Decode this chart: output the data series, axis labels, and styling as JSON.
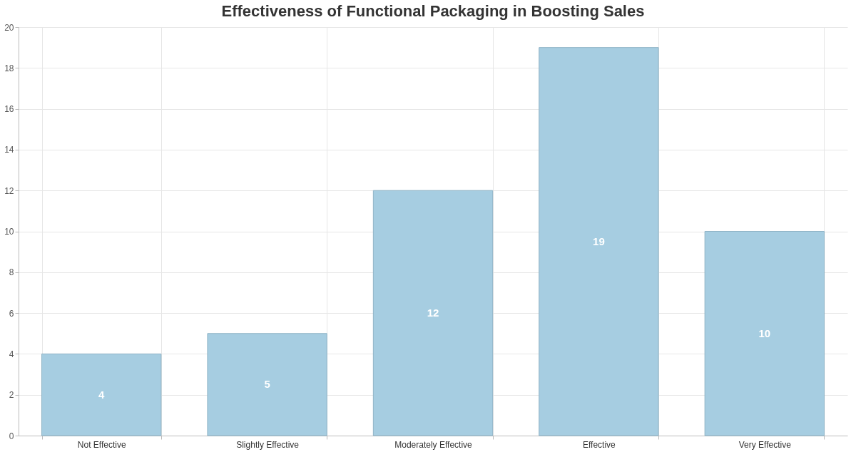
{
  "chart_data": {
    "type": "bar",
    "title": "Effectiveness of Functional Packaging in Boosting Sales",
    "categories": [
      "Not Effective",
      "Slightly Effective",
      "Moderately Effective",
      "Effective",
      "Very Effective"
    ],
    "values": [
      4,
      5,
      12,
      19,
      10
    ],
    "color": "#a6cde1",
    "ylim": [
      0,
      20
    ],
    "yticks": [
      0,
      2,
      4,
      6,
      8,
      10,
      12,
      14,
      16,
      18,
      20
    ],
    "grid": true,
    "data_labels": true
  }
}
